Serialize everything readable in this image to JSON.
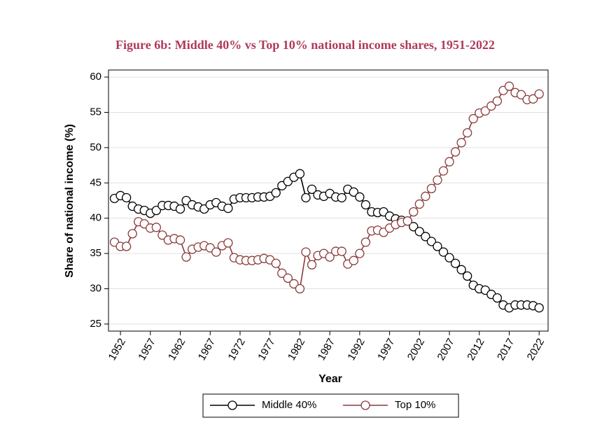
{
  "chart_data": {
    "type": "line",
    "title": "Figure 6b: Middle 40% vs Top 10% national income shares, 1951-2022",
    "x_label": "Year",
    "y_label": "Share of national income (%)",
    "x": [
      1951,
      1952,
      1953,
      1954,
      1955,
      1956,
      1957,
      1958,
      1959,
      1960,
      1961,
      1962,
      1963,
      1964,
      1965,
      1966,
      1967,
      1968,
      1969,
      1970,
      1971,
      1972,
      1973,
      1974,
      1975,
      1976,
      1977,
      1978,
      1979,
      1980,
      1981,
      1982,
      1983,
      1984,
      1985,
      1986,
      1987,
      1988,
      1989,
      1990,
      1991,
      1992,
      1993,
      1994,
      1995,
      1996,
      1997,
      1998,
      1999,
      2000,
      2001,
      2002,
      2003,
      2004,
      2005,
      2006,
      2007,
      2008,
      2009,
      2010,
      2011,
      2012,
      2013,
      2014,
      2015,
      2016,
      2017,
      2018,
      2019,
      2020,
      2021,
      2022
    ],
    "series": [
      {
        "name": "Middle 40%",
        "color": "#000000",
        "values": [
          42.8,
          43.2,
          42.9,
          41.7,
          41.3,
          41.1,
          40.7,
          41.1,
          41.8,
          41.8,
          41.7,
          41.3,
          42.5,
          41.9,
          41.6,
          41.3,
          41.9,
          42.2,
          41.7,
          41.4,
          42.7,
          42.9,
          42.9,
          42.9,
          43.0,
          43.0,
          43.1,
          43.6,
          44.6,
          45.2,
          45.8,
          46.3,
          42.9,
          44.1,
          43.3,
          43.1,
          43.5,
          43.0,
          42.9,
          44.1,
          43.7,
          43.0,
          41.9,
          40.9,
          40.8,
          40.9,
          40.3,
          39.9,
          39.7,
          39.6,
          38.8,
          38.1,
          37.4,
          36.7,
          36.0,
          35.2,
          34.4,
          33.6,
          32.7,
          31.8,
          30.5,
          30.0,
          29.8,
          29.2,
          28.7,
          27.7,
          27.3,
          27.7,
          27.7,
          27.7,
          27.6,
          27.3
        ]
      },
      {
        "name": "Top 10%",
        "color": "#8b3a3a",
        "values": [
          36.6,
          36.0,
          36.0,
          37.8,
          39.5,
          39.2,
          38.6,
          38.7,
          37.6,
          36.9,
          37.1,
          36.9,
          34.5,
          35.6,
          35.9,
          36.1,
          35.8,
          35.2,
          36.1,
          36.5,
          34.4,
          34.1,
          34.0,
          34.0,
          34.1,
          34.3,
          34.1,
          33.6,
          32.2,
          31.5,
          30.7,
          30.0,
          35.2,
          33.4,
          34.7,
          35.0,
          34.5,
          35.3,
          35.3,
          33.5,
          34.0,
          35.0,
          36.6,
          38.2,
          38.3,
          38.0,
          38.6,
          39.1,
          39.4,
          39.6,
          40.9,
          42.0,
          43.1,
          44.2,
          45.4,
          46.7,
          48.0,
          49.4,
          50.7,
          52.1,
          54.1,
          54.9,
          55.2,
          55.9,
          56.6,
          58.1,
          58.7,
          57.8,
          57.5,
          56.8,
          56.9,
          57.6
        ]
      }
    ],
    "xlim": [
      1950,
      2023.5
    ],
    "xticks": [
      1952,
      1957,
      1962,
      1967,
      1972,
      1977,
      1982,
      1987,
      1992,
      1997,
      2002,
      2007,
      2012,
      2017,
      2022
    ],
    "ylim": [
      24,
      61
    ],
    "yticks": [
      25,
      30,
      35,
      40,
      45,
      50,
      55,
      60
    ],
    "grid": true,
    "legend": "bottom"
  }
}
